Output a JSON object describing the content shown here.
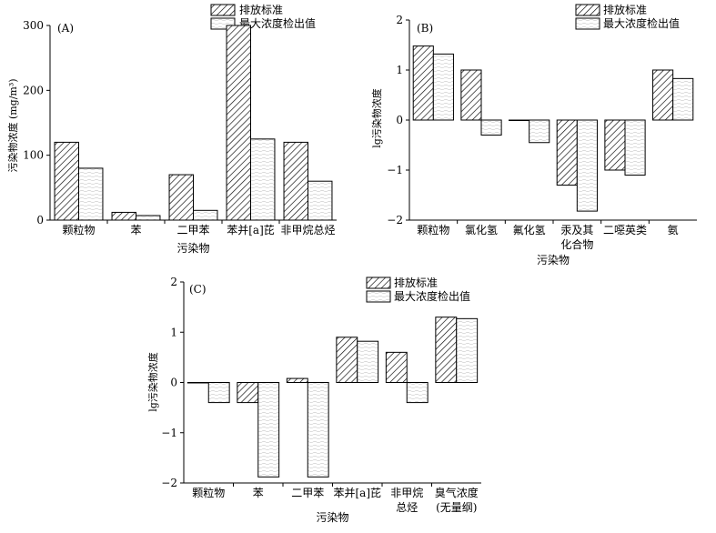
{
  "legend": {
    "emission": "排放标准",
    "detection": "最大浓度检出值"
  },
  "chart_data": [
    {
      "type": "bar",
      "panel": "(A)",
      "ylabel": "污染物浓度 (mg/m³)",
      "xlabel": "污染物",
      "ylim": [
        0,
        300
      ],
      "yticks": [
        0,
        100,
        200,
        300
      ],
      "categories": [
        "颗粒物",
        "苯",
        "二甲苯",
        "苯并[a]芘",
        "非甲烷总烃"
      ],
      "series": [
        {
          "name": "排放标准",
          "values": [
            120,
            12,
            70,
            300,
            120
          ]
        },
        {
          "name": "最大浓度检出值",
          "values": [
            80,
            7,
            15,
            125,
            60
          ]
        }
      ],
      "legend_position": "top-right"
    },
    {
      "type": "bar",
      "panel": "(B)",
      "ylabel": "lg污染物浓度",
      "xlabel": "污染物",
      "ylim": [
        -2,
        2
      ],
      "yticks": [
        -2,
        -1,
        0,
        1,
        2
      ],
      "categories": [
        "颗粒物",
        "氯化氢",
        "氟化氢",
        "汞及其化合物",
        "二噁英类",
        "氨"
      ],
      "series": [
        {
          "name": "排放标准",
          "values": [
            1.48,
            1.0,
            0.0,
            -1.3,
            -1.0,
            1.0
          ]
        },
        {
          "name": "最大浓度检出值",
          "values": [
            1.32,
            -0.3,
            -0.45,
            -1.82,
            -1.1,
            0.83
          ]
        }
      ],
      "legend_position": "top-right"
    },
    {
      "type": "bar",
      "panel": "(C)",
      "ylabel": "lg污染物浓度",
      "xlabel": "污染物",
      "ylim": [
        -2,
        2
      ],
      "yticks": [
        -2,
        -1,
        0,
        1,
        2
      ],
      "categories": [
        "颗粒物",
        "苯",
        "二甲苯",
        "苯并[a]芘",
        "非甲烷总烃",
        "臭气浓度(无量纲)"
      ],
      "series": [
        {
          "name": "排放标准",
          "values": [
            0.0,
            -0.4,
            0.08,
            0.9,
            0.6,
            1.3
          ]
        },
        {
          "name": "最大浓度检出值",
          "values": [
            -0.4,
            -1.88,
            -1.88,
            0.82,
            -0.4,
            1.27
          ]
        }
      ],
      "legend_position": "top-right"
    }
  ]
}
